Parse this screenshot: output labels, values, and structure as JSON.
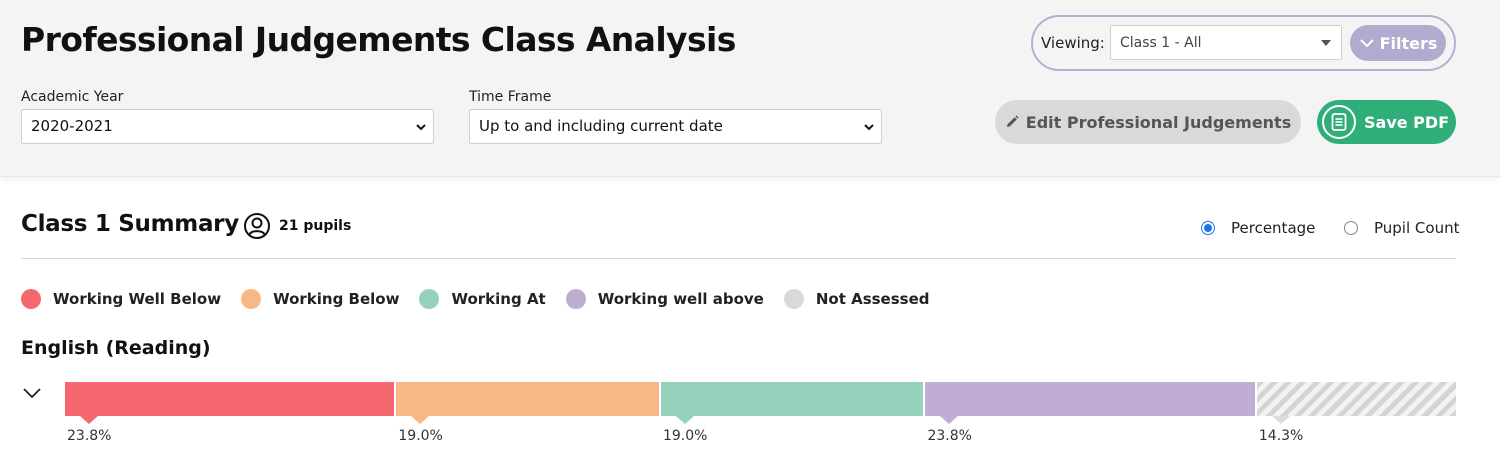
{
  "header": {
    "title": "Professional Judgements Class Analysis",
    "academic_year": {
      "label": "Academic Year",
      "value": "2020-2021"
    },
    "time_frame": {
      "label": "Time Frame",
      "value": "Up to and including current date"
    },
    "viewing": {
      "label": "Viewing:",
      "value": "Class 1 - All"
    },
    "filters_label": "Filters",
    "edit_label": "Edit Professional Judgements",
    "save_label": "Save PDF"
  },
  "summary": {
    "title": "Class 1 Summary",
    "pupils": "21 pupils",
    "view_options": [
      {
        "label": "Percentage",
        "checked": true
      },
      {
        "label": "Pupil Count",
        "checked": false
      }
    ]
  },
  "legend": [
    {
      "label": "Working Well Below",
      "color": "#f5686f"
    },
    {
      "label": "Working Below",
      "color": "#f8b886"
    },
    {
      "label": "Working At",
      "color": "#96d2bb"
    },
    {
      "label": "Working well above",
      "color": "#bfadd3"
    },
    {
      "label": "Not Assessed",
      "color": "#d9d9d9"
    }
  ],
  "subjects": [
    {
      "name": "English (Reading)",
      "segments": [
        {
          "label": "23.8%",
          "value": 23.8,
          "color": "#f5686f"
        },
        {
          "label": "19.0%",
          "value": 19.0,
          "color": "#f8b886"
        },
        {
          "label": "19.0%",
          "value": 19.0,
          "color": "#96d2bb"
        },
        {
          "label": "23.8%",
          "value": 23.8,
          "color": "#bfadd3"
        },
        {
          "label": "14.3%",
          "value": 14.3,
          "color": "#d9d9d9",
          "hatched": true
        }
      ]
    }
  ]
}
